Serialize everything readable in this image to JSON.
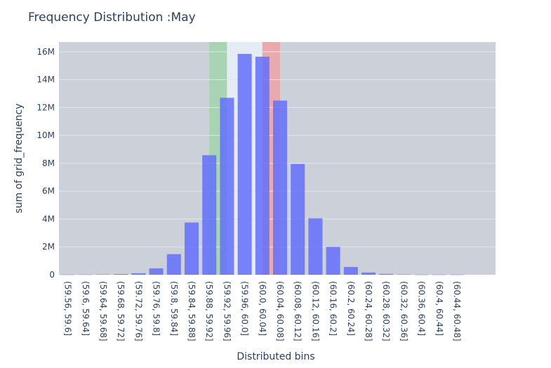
{
  "chart_data": {
    "type": "bar",
    "title": "Frequency Distribution :May",
    "xlabel": "Distributed bins",
    "ylabel": "sum of grid_frequency",
    "categories": [
      "(59.56, 59.6]",
      "(59.6, 59.64]",
      "(59.64, 59.68]",
      "(59.68, 59.72]",
      "(59.72, 59.76]",
      "(59.76, 59.8]",
      "(59.8, 59.84]",
      "(59.84, 59.88]",
      "(59.88, 59.92]",
      "(59.92, 59.96]",
      "(59.96, 60.0]",
      "(60.0, 60.04]",
      "(60.04, 60.08]",
      "(60.08, 60.12]",
      "(60.12, 60.16]",
      "(60.16, 60.2]",
      "(60.2, 60.24]",
      "(60.24, 60.28]",
      "(60.28, 60.32]",
      "(60.32, 60.36]",
      "(60.36, 60.4]",
      "(60.4, 60.44]",
      "(60.44, 60.48]"
    ],
    "values": [
      10000,
      15000,
      25000,
      50000,
      110000,
      460000,
      1480000,
      3750000,
      8580000,
      12700000,
      15850000,
      15650000,
      12500000,
      7950000,
      4050000,
      2000000,
      560000,
      160000,
      60000,
      20000,
      10000,
      10000,
      10000
    ],
    "ylim": [
      0,
      16700000
    ],
    "yticks": [
      0,
      2000000,
      4000000,
      6000000,
      8000000,
      10000000,
      12000000,
      14000000,
      16000000
    ],
    "ytick_labels": [
      "0",
      "2M",
      "4M",
      "6M",
      "8M",
      "10M",
      "12M",
      "14M",
      "16M"
    ],
    "grid": true,
    "bar_color": "#636efa",
    "plot_bg": "#ccd0d9",
    "highlight_bands": [
      {
        "from_index": 8.5,
        "to_index": 9.5,
        "color": "#a8d4b3"
      },
      {
        "from_index": 9.5,
        "to_index": 11.5,
        "color": "#e5ecf6"
      },
      {
        "from_index": 11.5,
        "to_index": 12.5,
        "color": "#e8aaaf"
      }
    ]
  }
}
